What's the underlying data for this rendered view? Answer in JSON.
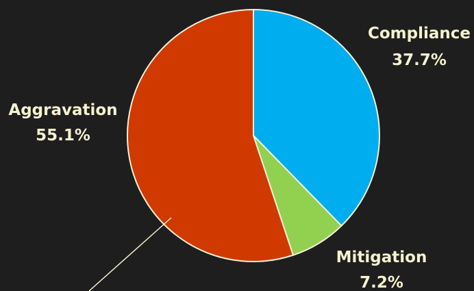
{
  "chart_data": {
    "type": "pie",
    "categories": [
      "Compliance",
      "Mitigation",
      "Aggravation"
    ],
    "values": [
      37.7,
      7.2,
      55.1
    ],
    "value_labels": [
      "37.7%",
      "7.2%",
      "55.1%"
    ],
    "colors": [
      "#00adef",
      "#92d050",
      "#d03a00"
    ],
    "start_angle_deg": 0,
    "direction": "clockwise",
    "legend": "none"
  }
}
